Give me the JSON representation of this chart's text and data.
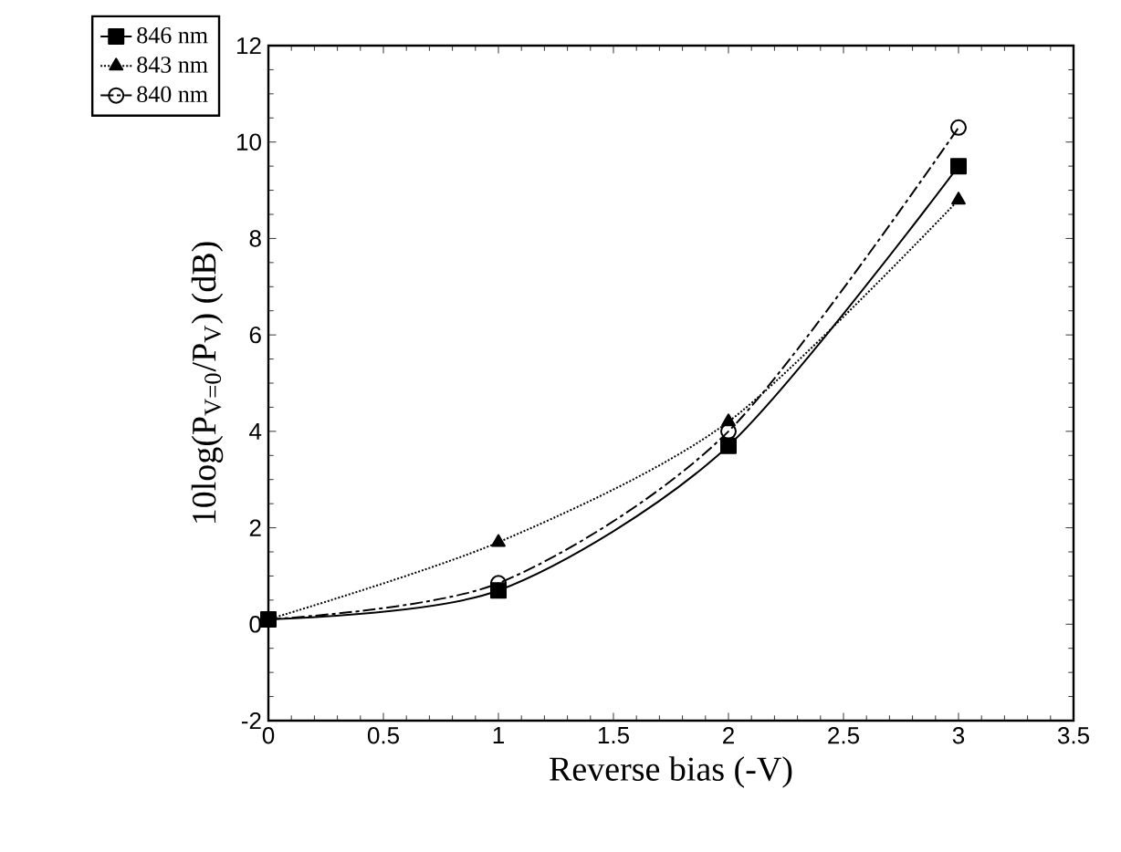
{
  "chart_data": {
    "type": "line",
    "xlabel": "Reverse bias (-V)",
    "ylabel": "10log(P$_{V=0}$/P$_{V}$) (dB)",
    "xlim": [
      0,
      3.5
    ],
    "xticks": [
      0,
      0.5,
      1,
      1.5,
      2,
      2.5,
      3,
      3.5
    ],
    "ylim": [
      -2,
      12
    ],
    "yticks": [
      -2,
      0,
      2,
      4,
      6,
      8,
      10,
      12
    ],
    "grid": false,
    "legend": "top left",
    "series": [
      {
        "name": "846 nm",
        "color": "#000000",
        "marker": "square",
        "line_style": "solid",
        "x": [
          0,
          1,
          2,
          3
        ],
        "values": [
          0.1,
          0.7,
          3.7,
          9.5
        ]
      },
      {
        "name": "843 nm",
        "color": "#000000",
        "marker": "triangle",
        "line_style": "dotted",
        "x": [
          0,
          1,
          2,
          3
        ],
        "values": [
          0.1,
          1.7,
          4.2,
          8.8
        ]
      },
      {
        "name": "840 nm",
        "color": "#000000",
        "marker": "circle",
        "line_style": "dashed",
        "x": [
          0,
          1,
          2,
          3
        ],
        "values": [
          0.1,
          0.85,
          4.0,
          10.3
        ]
      }
    ]
  }
}
